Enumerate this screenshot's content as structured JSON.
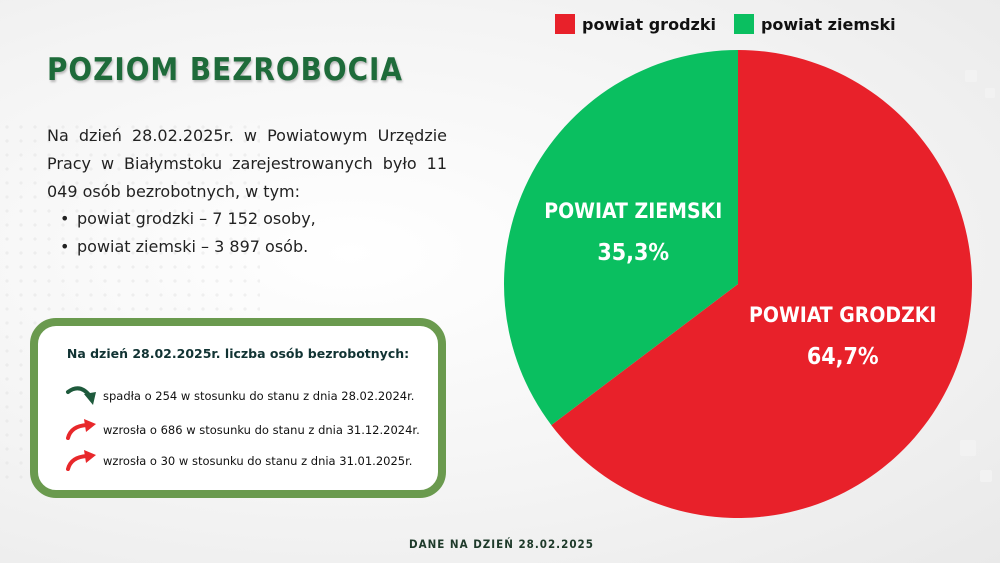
{
  "title": "POZIOM BEZROBOCIA",
  "intro": {
    "text": "Na dzień 28.02.2025r. w Powiatowym Urzędzie Pracy w Białymstoku zarejestrowanych było 11 049 osób bezrobotnych, w tym:",
    "items": [
      "powiat grodzki –  7 152 osoby,",
      "powiat ziemski – 3 897 osób."
    ]
  },
  "changes": {
    "title": "Na dzień 28.02.2025r. liczba osób bezrobotnych:",
    "items": [
      {
        "text": "spadła o 254 w stosunku do stanu z dnia 28.02.2024r.",
        "direction": "down",
        "icon": "arrow-down-icon",
        "color": "#1e5a3c"
      },
      {
        "text": "wzrosła o 686 w stosunku do stanu z dnia 31.12.2024r.",
        "direction": "up",
        "icon": "arrow-up-icon",
        "color": "#e8282b"
      },
      {
        "text": "wzrosła o 30 w stosunku do stanu z dnia 31.01.2025r.",
        "direction": "up",
        "icon": "arrow-up-icon",
        "color": "#e8282b"
      }
    ]
  },
  "footer": "DANE NA DZIEŃ 28.02.2025",
  "chart_data": {
    "type": "pie",
    "legend_position": "top-right",
    "legend": [
      "powiat grodzki",
      "powiat ziemski"
    ],
    "slices": [
      {
        "label": "POWIAT GRODZKI",
        "value": 64.7,
        "value_label": "64,7%",
        "color": "#e8212a"
      },
      {
        "label": "POWIAT ZIEMSKI",
        "value": 35.3,
        "value_label": "35,3%",
        "color": "#0abf60"
      }
    ]
  }
}
